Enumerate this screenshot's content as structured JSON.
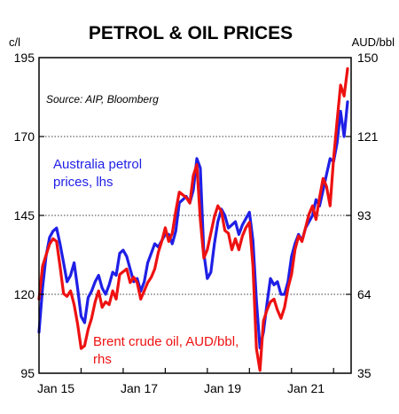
{
  "chart_data": {
    "type": "line",
    "title": "PETROL & OIL PRICES",
    "left_unit": "c/l",
    "right_unit": "AUD/bbl",
    "source": "Source: AIP, Bloomberg",
    "x_ticks": [
      "Jan 15",
      "Jan 17",
      "Jan 19",
      "Jan 21"
    ],
    "xlim": [
      "2015-01",
      "2022-06"
    ],
    "ylim_left": [
      95,
      195
    ],
    "ylim_right": [
      35,
      150
    ],
    "left_ticks": [
      "195",
      "170",
      "145",
      "120",
      "95"
    ],
    "right_ticks": [
      "150",
      "121",
      "93",
      "64",
      "35"
    ],
    "gridlines_at_left": [
      170,
      145,
      120
    ],
    "series": [
      {
        "name": "Australia petrol prices, lhs",
        "label_lines": [
          "Australia petrol",
          "prices, lhs"
        ],
        "axis": "left",
        "color": "#1f1fe6",
        "x": [
          "2015-01",
          "2015-02",
          "2015-03",
          "2015-04",
          "2015-05",
          "2015-06",
          "2015-07",
          "2015-08",
          "2015-09",
          "2015-10",
          "2015-11",
          "2015-12",
          "2016-01",
          "2016-02",
          "2016-03",
          "2016-04",
          "2016-05",
          "2016-06",
          "2016-07",
          "2016-08",
          "2016-09",
          "2016-10",
          "2016-11",
          "2016-12",
          "2017-01",
          "2017-02",
          "2017-03",
          "2017-04",
          "2017-05",
          "2017-06",
          "2017-07",
          "2017-08",
          "2017-09",
          "2017-10",
          "2017-11",
          "2017-12",
          "2018-01",
          "2018-02",
          "2018-03",
          "2018-04",
          "2018-05",
          "2018-06",
          "2018-07",
          "2018-08",
          "2018-09",
          "2018-10",
          "2018-11",
          "2018-12",
          "2019-01",
          "2019-02",
          "2019-03",
          "2019-04",
          "2019-05",
          "2019-06",
          "2019-07",
          "2019-08",
          "2019-09",
          "2019-10",
          "2019-11",
          "2019-12",
          "2020-01",
          "2020-02",
          "2020-03",
          "2020-04",
          "2020-05",
          "2020-06",
          "2020-07",
          "2020-08",
          "2020-09",
          "2020-10",
          "2020-11",
          "2020-12",
          "2021-01",
          "2021-02",
          "2021-03",
          "2021-04",
          "2021-05",
          "2021-06",
          "2021-07",
          "2021-08",
          "2021-09",
          "2021-10",
          "2021-11",
          "2021-12",
          "2022-01",
          "2022-02",
          "2022-03",
          "2022-04",
          "2022-05"
        ],
        "values": [
          108,
          122,
          132,
          138,
          140,
          141,
          136,
          130,
          124,
          126,
          130,
          122,
          113,
          111,
          119,
          121,
          124,
          126,
          122,
          120,
          123,
          127,
          126,
          133,
          134,
          132,
          128,
          124,
          125,
          121,
          124,
          130,
          133,
          136,
          135,
          137,
          139,
          139,
          136,
          140,
          149,
          150,
          151,
          149,
          153,
          163,
          160,
          133,
          125,
          127,
          136,
          143,
          147,
          145,
          141,
          142,
          143,
          139,
          142,
          144,
          146,
          137,
          118,
          103,
          108,
          117,
          125,
          123,
          124,
          120,
          120,
          124,
          132,
          136,
          139,
          137,
          141,
          143,
          145,
          150,
          148,
          153,
          158,
          163,
          162,
          168,
          178,
          170,
          181
        ]
      },
      {
        "name": "Brent crude oil, AUD/bbl, rhs",
        "label_lines": [
          "Brent crude oil, AUD/bbl,",
          "rhs"
        ],
        "axis": "right",
        "color": "#ee1111",
        "x": [
          "2015-01",
          "2015-02",
          "2015-03",
          "2015-04",
          "2015-05",
          "2015-06",
          "2015-07",
          "2015-08",
          "2015-09",
          "2015-10",
          "2015-11",
          "2015-12",
          "2016-01",
          "2016-02",
          "2016-03",
          "2016-04",
          "2016-05",
          "2016-06",
          "2016-07",
          "2016-08",
          "2016-09",
          "2016-10",
          "2016-11",
          "2016-12",
          "2017-01",
          "2017-02",
          "2017-03",
          "2017-04",
          "2017-05",
          "2017-06",
          "2017-07",
          "2017-08",
          "2017-09",
          "2017-10",
          "2017-11",
          "2017-12",
          "2018-01",
          "2018-02",
          "2018-03",
          "2018-04",
          "2018-05",
          "2018-06",
          "2018-07",
          "2018-08",
          "2018-09",
          "2018-10",
          "2018-11",
          "2018-12",
          "2019-01",
          "2019-02",
          "2019-03",
          "2019-04",
          "2019-05",
          "2019-06",
          "2019-07",
          "2019-08",
          "2019-09",
          "2019-10",
          "2019-11",
          "2019-12",
          "2020-01",
          "2020-02",
          "2020-03",
          "2020-04",
          "2020-05",
          "2020-06",
          "2020-07",
          "2020-08",
          "2020-09",
          "2020-10",
          "2020-11",
          "2020-12",
          "2021-01",
          "2021-02",
          "2021-03",
          "2021-04",
          "2021-05",
          "2021-06",
          "2021-07",
          "2021-08",
          "2021-09",
          "2021-10",
          "2021-11",
          "2021-12",
          "2022-01",
          "2022-02",
          "2022-03",
          "2022-04",
          "2022-05"
        ],
        "values": [
          62,
          74,
          78,
          82,
          84,
          83,
          74,
          64,
          63,
          65,
          60,
          53,
          44,
          45,
          51,
          55,
          61,
          65,
          59,
          61,
          60,
          65,
          62,
          71,
          72,
          73,
          68,
          70,
          68,
          62,
          65,
          68,
          70,
          73,
          79,
          83,
          88,
          83,
          86,
          94,
          101,
          100,
          99,
          97,
          107,
          111,
          91,
          77,
          80,
          86,
          92,
          96,
          94,
          87,
          86,
          80,
          84,
          80,
          85,
          88,
          90,
          74,
          44,
          36,
          54,
          58,
          61,
          62,
          58,
          55,
          59,
          66,
          71,
          80,
          85,
          83,
          88,
          93,
          96,
          91,
          99,
          106,
          103,
          96,
          113,
          127,
          140,
          136,
          146
        ]
      }
    ]
  }
}
